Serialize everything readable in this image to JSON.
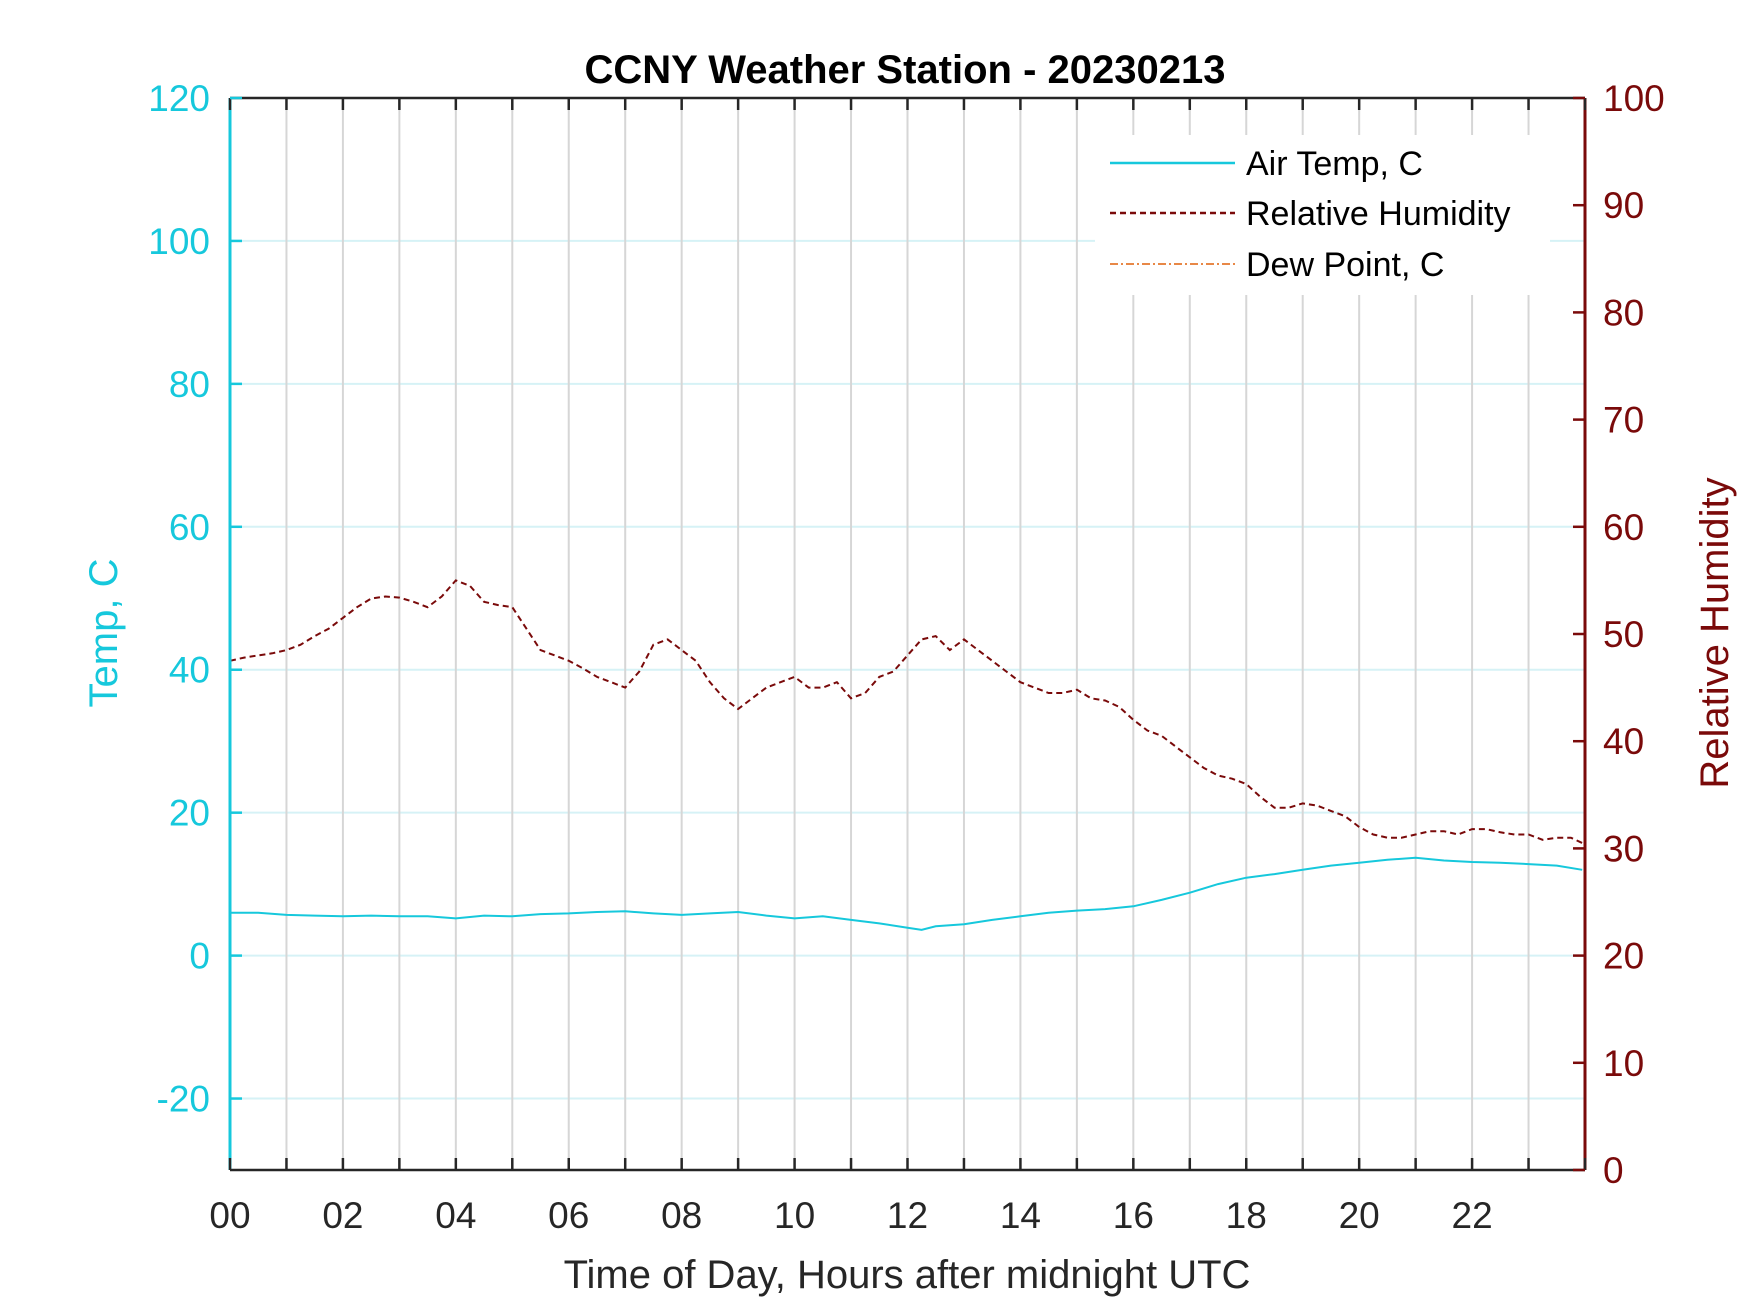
{
  "chart_data": {
    "type": "line",
    "title": "CCNY Weather Station - 20230213",
    "xlabel": "Time of Day, Hours after midnight UTC",
    "ylabel_left": "Temp, C",
    "ylabel_right": "Relative Humidity",
    "xlim": [
      0,
      24
    ],
    "ylim_left": [
      -30,
      120
    ],
    "ylim_right": [
      0,
      100
    ],
    "x_ticks": [
      "00",
      "02",
      "04",
      "06",
      "08",
      "10",
      "12",
      "14",
      "16",
      "18",
      "20",
      "22"
    ],
    "y_ticks_left": [
      "-20",
      "0",
      "20",
      "40",
      "60",
      "80",
      "100",
      "120"
    ],
    "y_ticks_right": [
      "0",
      "10",
      "20",
      "30",
      "40",
      "50",
      "60",
      "70",
      "80",
      "90",
      "100"
    ],
    "grid": true,
    "legend_position": "top-right",
    "colors": {
      "air_temp": "#16c8dc",
      "humidity": "#7a0a0a",
      "dew_point": "#e0600a",
      "grid_vertical": "#d6d6d6",
      "grid_horizontal": "#d6f2f6"
    },
    "series": [
      {
        "name": "Air Temp, C",
        "axis": "left",
        "style": "solid",
        "x": [
          0,
          0.5,
          1,
          1.5,
          2,
          2.5,
          3,
          3.5,
          4,
          4.5,
          5,
          5.5,
          6,
          6.5,
          7,
          7.5,
          8,
          8.5,
          9,
          9.5,
          10,
          10.5,
          11,
          11.5,
          12,
          12.25,
          12.5,
          13,
          13.5,
          14,
          14.5,
          15,
          15.5,
          16,
          16.5,
          17,
          17.5,
          18,
          18.5,
          19,
          19.5,
          20,
          20.5,
          21,
          21.5,
          22,
          22.5,
          23,
          23.5,
          23.95
        ],
        "y": [
          6,
          6,
          5.7,
          5.6,
          5.5,
          5.6,
          5.5,
          5.5,
          5.2,
          5.6,
          5.5,
          5.8,
          5.9,
          6.1,
          6.2,
          5.9,
          5.7,
          5.9,
          6.1,
          5.6,
          5.2,
          5.5,
          5.0,
          4.5,
          3.9,
          3.6,
          4.1,
          4.4,
          5.0,
          5.5,
          6.0,
          6.3,
          6.5,
          6.9,
          7.8,
          8.8,
          10.0,
          10.9,
          11.4,
          12.0,
          12.6,
          13.0,
          13.4,
          13.7,
          13.3,
          13.1,
          13.0,
          12.8,
          12.6,
          12.0
        ]
      },
      {
        "name": "Relative Humidity",
        "axis": "right",
        "style": "dashed",
        "x": [
          0,
          0.25,
          0.5,
          0.75,
          1,
          1.25,
          1.5,
          1.75,
          2,
          2.25,
          2.5,
          2.75,
          3,
          3.25,
          3.5,
          3.75,
          4,
          4.25,
          4.5,
          4.75,
          5,
          5.25,
          5.5,
          5.75,
          6,
          6.25,
          6.5,
          6.75,
          7,
          7.25,
          7.5,
          7.75,
          8,
          8.25,
          8.5,
          8.75,
          9,
          9.25,
          9.5,
          9.75,
          10,
          10.25,
          10.5,
          10.75,
          11,
          11.25,
          11.5,
          11.75,
          12,
          12.25,
          12.5,
          12.75,
          13,
          13.25,
          13.5,
          13.75,
          14,
          14.25,
          14.5,
          14.75,
          15,
          15.25,
          15.5,
          15.75,
          16,
          16.25,
          16.5,
          16.75,
          17,
          17.25,
          17.5,
          17.75,
          18,
          18.25,
          18.5,
          18.75,
          19,
          19.25,
          19.5,
          19.75,
          20,
          20.25,
          20.5,
          20.75,
          21,
          21.25,
          21.5,
          21.75,
          22,
          22.25,
          22.5,
          22.75,
          23,
          23.25,
          23.5,
          23.75,
          23.95
        ],
        "y": [
          47.5,
          47.8,
          48.0,
          48.2,
          48.5,
          49.0,
          49.8,
          50.5,
          51.5,
          52.5,
          53.3,
          53.5,
          53.4,
          53.0,
          52.5,
          53.5,
          55.0,
          54.5,
          53.0,
          52.7,
          52.5,
          50.5,
          48.5,
          48.0,
          47.5,
          46.8,
          46.0,
          45.5,
          45.0,
          46.5,
          49.0,
          49.5,
          48.5,
          47.5,
          45.5,
          44.0,
          43.0,
          44.0,
          45.0,
          45.5,
          46.0,
          45.0,
          45.0,
          45.5,
          44.0,
          44.5,
          46.0,
          46.5,
          48.0,
          49.5,
          49.8,
          48.5,
          49.5,
          48.5,
          47.5,
          46.5,
          45.5,
          45.0,
          44.5,
          44.5,
          44.8,
          44.0,
          43.8,
          43.2,
          42.0,
          41.0,
          40.5,
          39.5,
          38.5,
          37.5,
          36.8,
          36.5,
          36.0,
          34.8,
          33.8,
          33.8,
          34.2,
          34.0,
          33.5,
          33.0,
          32.0,
          31.3,
          31.0,
          31.0,
          31.3,
          31.6,
          31.6,
          31.3,
          31.8,
          31.8,
          31.5,
          31.3,
          31.3,
          30.8,
          31.0,
          31.0,
          30.5
        ]
      },
      {
        "name": "Dew Point, C",
        "axis": "left",
        "style": "dash-dot",
        "x": [],
        "y": []
      }
    ]
  }
}
